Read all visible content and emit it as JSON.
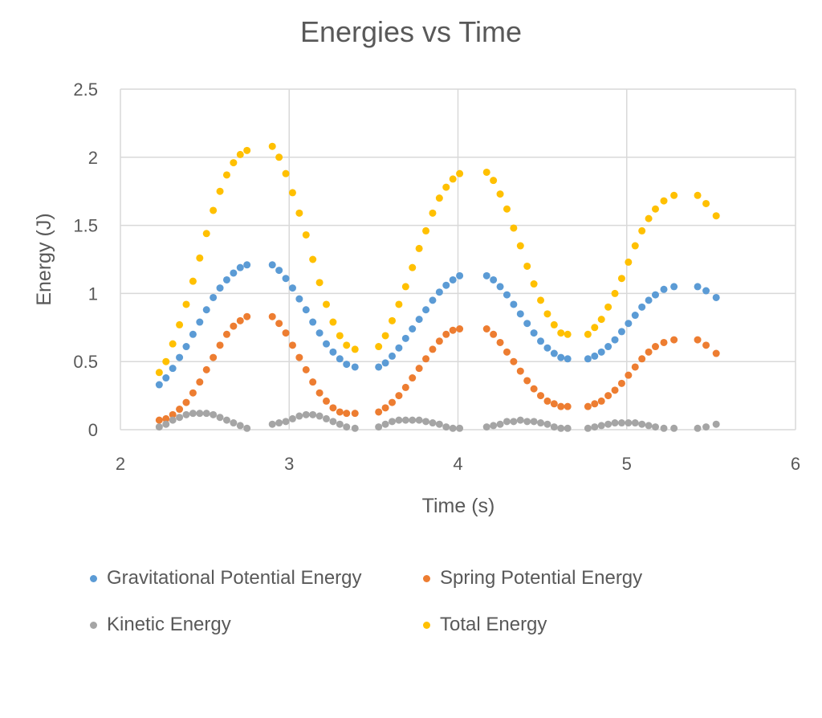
{
  "chart_data": {
    "type": "scatter",
    "title": "Energies vs Time",
    "xlabel": "Time (s)",
    "ylabel": "Energy (J)",
    "xlim": [
      2,
      6
    ],
    "ylim": [
      0,
      2.5
    ],
    "xticks": [
      "2",
      "3",
      "4",
      "5",
      "6"
    ],
    "yticks": [
      "0",
      "0.5",
      "1",
      "1.5",
      "2",
      "2.5"
    ],
    "grid": true,
    "legend_position": "bottom",
    "x": [
      2.23,
      2.27,
      2.31,
      2.35,
      2.39,
      2.43,
      2.47,
      2.51,
      2.55,
      2.59,
      2.63,
      2.67,
      2.71,
      2.75,
      2.9,
      2.94,
      2.98,
      3.02,
      3.06,
      3.1,
      3.14,
      3.18,
      3.22,
      3.26,
      3.3,
      3.34,
      3.39,
      3.53,
      3.57,
      3.61,
      3.65,
      3.69,
      3.73,
      3.77,
      3.81,
      3.85,
      3.89,
      3.93,
      3.97,
      4.01,
      4.17,
      4.21,
      4.25,
      4.29,
      4.33,
      4.37,
      4.41,
      4.45,
      4.49,
      4.53,
      4.57,
      4.61,
      4.65,
      4.77,
      4.81,
      4.85,
      4.89,
      4.93,
      4.97,
      5.01,
      5.05,
      5.09,
      5.13,
      5.17,
      5.22,
      5.28,
      5.42,
      5.47,
      5.53
    ],
    "series": [
      {
        "name": "Gravitational Potential Energy",
        "color": "#5B9BD5",
        "values": [
          0.33,
          0.38,
          0.45,
          0.53,
          0.61,
          0.7,
          0.79,
          0.88,
          0.97,
          1.04,
          1.1,
          1.15,
          1.19,
          1.21,
          1.21,
          1.17,
          1.11,
          1.04,
          0.96,
          0.88,
          0.79,
          0.71,
          0.63,
          0.57,
          0.52,
          0.48,
          0.46,
          0.46,
          0.49,
          0.54,
          0.6,
          0.67,
          0.74,
          0.81,
          0.88,
          0.95,
          1.01,
          1.06,
          1.1,
          1.13,
          1.13,
          1.1,
          1.05,
          0.99,
          0.92,
          0.85,
          0.78,
          0.71,
          0.65,
          0.6,
          0.56,
          0.53,
          0.52,
          0.52,
          0.54,
          0.57,
          0.61,
          0.66,
          0.72,
          0.78,
          0.84,
          0.9,
          0.95,
          0.99,
          1.03,
          1.05,
          1.05,
          1.02,
          0.97
        ]
      },
      {
        "name": "Spring Potential Energy",
        "color": "#ED7D31",
        "values": [
          0.07,
          0.08,
          0.11,
          0.15,
          0.2,
          0.27,
          0.35,
          0.44,
          0.53,
          0.62,
          0.7,
          0.76,
          0.8,
          0.83,
          0.83,
          0.78,
          0.71,
          0.62,
          0.53,
          0.44,
          0.35,
          0.27,
          0.21,
          0.16,
          0.13,
          0.12,
          0.12,
          0.13,
          0.16,
          0.2,
          0.25,
          0.31,
          0.38,
          0.45,
          0.52,
          0.59,
          0.65,
          0.7,
          0.73,
          0.74,
          0.74,
          0.7,
          0.64,
          0.57,
          0.5,
          0.43,
          0.36,
          0.3,
          0.25,
          0.21,
          0.19,
          0.17,
          0.17,
          0.17,
          0.19,
          0.21,
          0.25,
          0.29,
          0.34,
          0.4,
          0.46,
          0.52,
          0.57,
          0.61,
          0.64,
          0.66,
          0.66,
          0.62,
          0.56
        ]
      },
      {
        "name": "Kinetic Energy",
        "color": "#A5A5A5",
        "values": [
          0.02,
          0.04,
          0.07,
          0.09,
          0.11,
          0.12,
          0.12,
          0.12,
          0.11,
          0.09,
          0.07,
          0.05,
          0.03,
          0.01,
          0.04,
          0.05,
          0.06,
          0.08,
          0.1,
          0.11,
          0.11,
          0.1,
          0.08,
          0.06,
          0.04,
          0.02,
          0.01,
          0.02,
          0.04,
          0.06,
          0.07,
          0.07,
          0.07,
          0.07,
          0.06,
          0.05,
          0.04,
          0.02,
          0.01,
          0.01,
          0.02,
          0.03,
          0.04,
          0.06,
          0.06,
          0.07,
          0.06,
          0.06,
          0.05,
          0.04,
          0.02,
          0.01,
          0.01,
          0.01,
          0.02,
          0.03,
          0.04,
          0.05,
          0.05,
          0.05,
          0.05,
          0.04,
          0.03,
          0.02,
          0.01,
          0.01,
          0.01,
          0.02,
          0.04
        ]
      },
      {
        "name": "Total Energy",
        "color": "#FFC000",
        "values": [
          0.42,
          0.5,
          0.63,
          0.77,
          0.92,
          1.09,
          1.26,
          1.44,
          1.61,
          1.75,
          1.87,
          1.96,
          2.02,
          2.05,
          2.08,
          2.0,
          1.88,
          1.74,
          1.59,
          1.43,
          1.25,
          1.08,
          0.92,
          0.79,
          0.69,
          0.62,
          0.59,
          0.61,
          0.69,
          0.8,
          0.92,
          1.05,
          1.19,
          1.33,
          1.46,
          1.59,
          1.7,
          1.78,
          1.84,
          1.88,
          1.89,
          1.83,
          1.73,
          1.62,
          1.48,
          1.35,
          1.2,
          1.07,
          0.95,
          0.85,
          0.77,
          0.71,
          0.7,
          0.7,
          0.75,
          0.81,
          0.9,
          1.0,
          1.11,
          1.23,
          1.35,
          1.46,
          1.55,
          1.62,
          1.68,
          1.72,
          1.72,
          1.66,
          1.57
        ]
      }
    ]
  }
}
